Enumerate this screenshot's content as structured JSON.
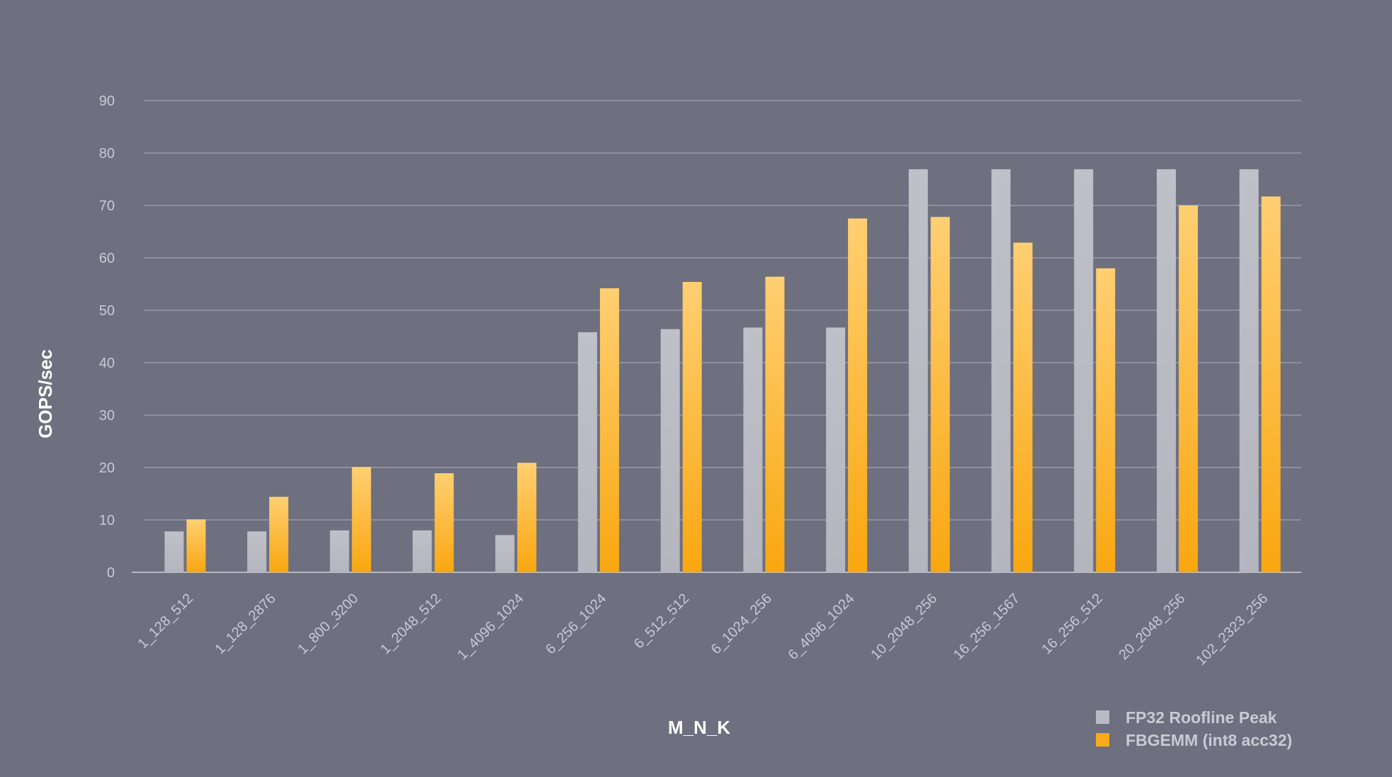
{
  "chart_data": {
    "type": "bar",
    "xlabel": "M_N_K",
    "ylabel": "GOPS/sec",
    "ylim": [
      0,
      90
    ],
    "yticks": [
      0,
      10,
      20,
      30,
      40,
      50,
      60,
      70,
      80,
      90
    ],
    "grid": true,
    "legend_position": "bottom-right",
    "categories": [
      "1_128_512",
      "1_128_2876",
      "1_800_3200",
      "1_2048_512",
      "1_4096_1024",
      "6_256_1024",
      "6_512_512",
      "6_1024_256",
      "6_4096_1024",
      "10_2048_256",
      "16_256_1567",
      "16_256_512",
      "20_2048_256",
      "102_2323_256"
    ],
    "series": [
      {
        "name": "FP32 Roofline Peak",
        "color": "#b9bac3",
        "values": [
          7.8,
          7.8,
          8.0,
          8.0,
          7.1,
          45.8,
          46.4,
          46.7,
          46.7,
          76.9,
          76.9,
          76.9,
          76.9,
          76.9
        ]
      },
      {
        "name": "FBGEMM (int8 acc32)",
        "color": "#f9ab1a",
        "values": [
          10.1,
          14.4,
          20.1,
          18.9,
          20.9,
          54.2,
          55.4,
          56.4,
          67.5,
          67.8,
          62.9,
          58.0,
          70.0,
          71.7
        ]
      }
    ]
  }
}
